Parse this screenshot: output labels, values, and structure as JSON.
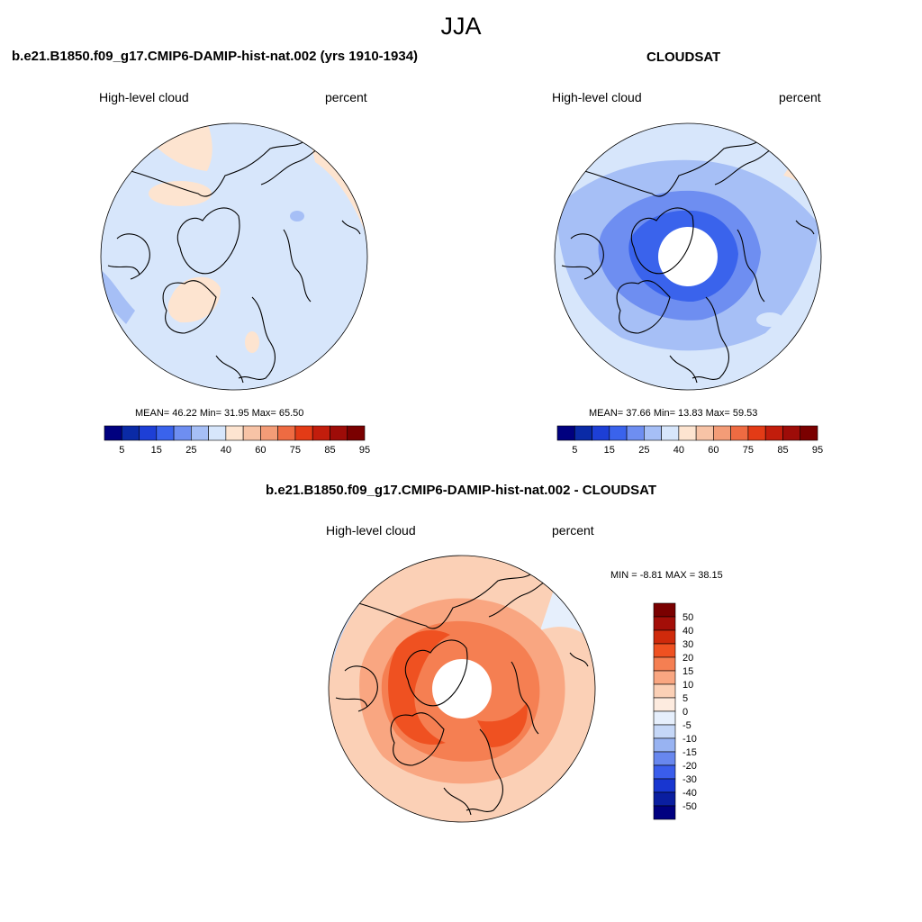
{
  "season": "JJA",
  "top_left": {
    "title": "b.e21.B1850.f09_g17.CMIP6-DAMIP-hist-nat.002 (yrs 1910-1934)",
    "variable": "High-level cloud",
    "units": "percent",
    "stats": "MEAN=  46.22  Min=  31.95  Max=  65.50",
    "mean": 46.22,
    "min": 31.95,
    "max": 65.5,
    "colorbar_labels": [
      "5",
      "15",
      "25",
      "40",
      "60",
      "75",
      "85",
      "95"
    ]
  },
  "top_right": {
    "title": "CLOUDSAT",
    "variable": "High-level cloud",
    "units": "percent",
    "stats": "MEAN=  37.66  Min=  13.83  Max=  59.53",
    "mean": 37.66,
    "min": 13.83,
    "max": 59.53,
    "colorbar_labels": [
      "5",
      "15",
      "25",
      "40",
      "60",
      "75",
      "85",
      "95"
    ]
  },
  "bottom": {
    "title": "b.e21.B1850.f09_g17.CMIP6-DAMIP-hist-nat.002 - CLOUDSAT",
    "variable": "High-level cloud",
    "units": "percent",
    "stats": "MIN =  -8.81 MAX =  38.15",
    "min": -8.81,
    "max": 38.15,
    "colorbar_labels": [
      "50",
      "40",
      "30",
      "20",
      "15",
      "10",
      "5",
      "0",
      "-5",
      "-10",
      "-15",
      "-20",
      "-30",
      "-40",
      "-50"
    ]
  },
  "colors": {
    "abs_scale": [
      "#00007f",
      "#0a2aa6",
      "#1d3fd6",
      "#3a63ec",
      "#6e8ef1",
      "#a6bff6",
      "#d7e6fb",
      "#fde4d0",
      "#f7c3a6",
      "#f39c77",
      "#ee6b42",
      "#e33b16",
      "#c21d0c",
      "#9e0c08",
      "#7a0000"
    ],
    "diff_scale": [
      "#7a0000",
      "#a30e08",
      "#cf2a0b",
      "#ef5121",
      "#f57f52",
      "#f9a681",
      "#fbd0b6",
      "#fdebdf",
      "#e6effc",
      "#c5d7f7",
      "#98b3f2",
      "#6887ee",
      "#3a5deb",
      "#1836d0",
      "#0a1ea0",
      "#000080"
    ],
    "land_outline": "#000000"
  },
  "chart_data": [
    {
      "type": "heatmap",
      "title": "b.e21.B1850.f09_g17.CMIP6-DAMIP-hist-nat.002 (yrs 1910-1934)",
      "projection": "north polar stereographic",
      "field": "High-level cloud",
      "units": "percent",
      "mean": 46.22,
      "min": 31.95,
      "max": 65.5,
      "levels": [
        5,
        10,
        15,
        20,
        25,
        30,
        40,
        50,
        60,
        70,
        75,
        80,
        85,
        90,
        95
      ]
    },
    {
      "type": "heatmap",
      "title": "CLOUDSAT",
      "projection": "north polar stereographic",
      "field": "High-level cloud",
      "units": "percent",
      "mean": 37.66,
      "min": 13.83,
      "max": 59.53,
      "levels": [
        5,
        10,
        15,
        20,
        25,
        30,
        40,
        50,
        60,
        70,
        75,
        80,
        85,
        90,
        95
      ]
    },
    {
      "type": "heatmap",
      "title": "b.e21.B1850.f09_g17.CMIP6-DAMIP-hist-nat.002 - CLOUDSAT",
      "projection": "north polar stereographic",
      "field": "High-level cloud",
      "units": "percent",
      "min": -8.81,
      "max": 38.15,
      "levels": [
        -50,
        -40,
        -30,
        -20,
        -15,
        -10,
        -5,
        0,
        5,
        10,
        15,
        20,
        30,
        40,
        50
      ]
    }
  ]
}
